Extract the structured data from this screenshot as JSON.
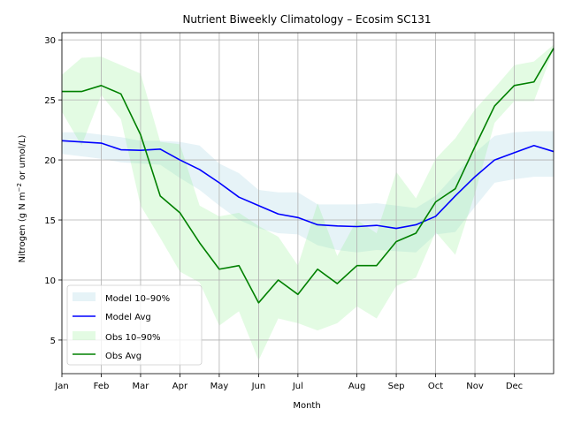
{
  "chart_data": {
    "type": "line",
    "title": "Nutrient Biweekly Climatology – Ecosim SC131",
    "xlabel": "Month",
    "ylabel_prefix": "Nitrogen (g N m",
    "ylabel_exp": "−2",
    "ylabel_suffix": " or umol/L)",
    "x_tick_labels": [
      "Jan",
      "Feb",
      "Mar",
      "Apr",
      "May",
      "Jun",
      "Jul",
      "Aug",
      "Sep",
      "Oct",
      "Nov",
      "Dec"
    ],
    "x_tick_positions": [
      0,
      2,
      4,
      6,
      8,
      10,
      12,
      15,
      17,
      19,
      21,
      23
    ],
    "xlim": [
      0,
      25
    ],
    "ylim": [
      2.2,
      30.6
    ],
    "y_ticks": [
      5,
      10,
      15,
      20,
      25,
      30
    ],
    "grid": true,
    "legend_position": "lower-left",
    "x": [
      0,
      1,
      2,
      3,
      4,
      5,
      6,
      7,
      8,
      9,
      10,
      11,
      12,
      13,
      14,
      15,
      16,
      17,
      18,
      19,
      20,
      21,
      22,
      23,
      24,
      25
    ],
    "series": [
      {
        "name": "Model Avg",
        "band_name": "Model 10–90%",
        "color": "#0000ff",
        "band_color": "#add8e6",
        "values": [
          21.6,
          21.5,
          21.4,
          20.85,
          20.8,
          20.9,
          20.0,
          19.2,
          18.1,
          16.9,
          16.2,
          15.5,
          15.2,
          14.6,
          14.5,
          14.45,
          14.55,
          14.3,
          14.6,
          15.3,
          17.0,
          18.6,
          20.0,
          20.6,
          21.2,
          20.7
        ],
        "lower": [
          20.5,
          20.3,
          20.1,
          19.8,
          19.7,
          19.6,
          18.5,
          17.5,
          16.2,
          15.0,
          14.3,
          13.9,
          13.8,
          12.9,
          12.5,
          12.3,
          12.5,
          12.4,
          12.3,
          13.8,
          14.0,
          16.1,
          18.1,
          18.4,
          18.6,
          18.6
        ],
        "upper": [
          22.3,
          22.3,
          22.1,
          21.9,
          21.6,
          21.6,
          21.5,
          21.2,
          19.7,
          18.9,
          17.5,
          17.3,
          17.3,
          16.3,
          16.3,
          16.3,
          16.4,
          16.2,
          16.0,
          17.0,
          18.8,
          20.6,
          22.0,
          22.3,
          22.4,
          22.4
        ]
      },
      {
        "name": "Obs Avg",
        "band_name": "Obs 10–90%",
        "color": "#008000",
        "band_color": "#90ee90",
        "values": [
          25.7,
          25.7,
          26.2,
          25.5,
          22.1,
          17.0,
          15.6,
          13.1,
          10.9,
          11.2,
          8.1,
          10.0,
          8.8,
          10.9,
          9.7,
          11.2,
          11.2,
          13.2,
          13.9,
          16.5,
          17.6,
          21.1,
          24.5,
          26.2,
          26.5,
          29.3
        ],
        "lower": [
          24.0,
          21.2,
          25.4,
          23.4,
          16.2,
          13.5,
          10.7,
          9.8,
          6.2,
          7.4,
          3.3,
          6.8,
          6.4,
          5.8,
          6.4,
          7.8,
          6.8,
          9.5,
          10.2,
          14.0,
          12.1,
          17.2,
          23.1,
          24.9,
          24.9,
          29.2
        ],
        "upper": [
          27.1,
          28.5,
          28.6,
          27.9,
          27.2,
          21.5,
          21.3,
          16.2,
          15.3,
          15.6,
          14.5,
          13.6,
          11.2,
          16.4,
          12.0,
          15.0,
          13.9,
          19.0,
          16.8,
          20.1,
          21.8,
          24.2,
          26.0,
          27.9,
          28.2,
          29.6
        ]
      }
    ]
  }
}
